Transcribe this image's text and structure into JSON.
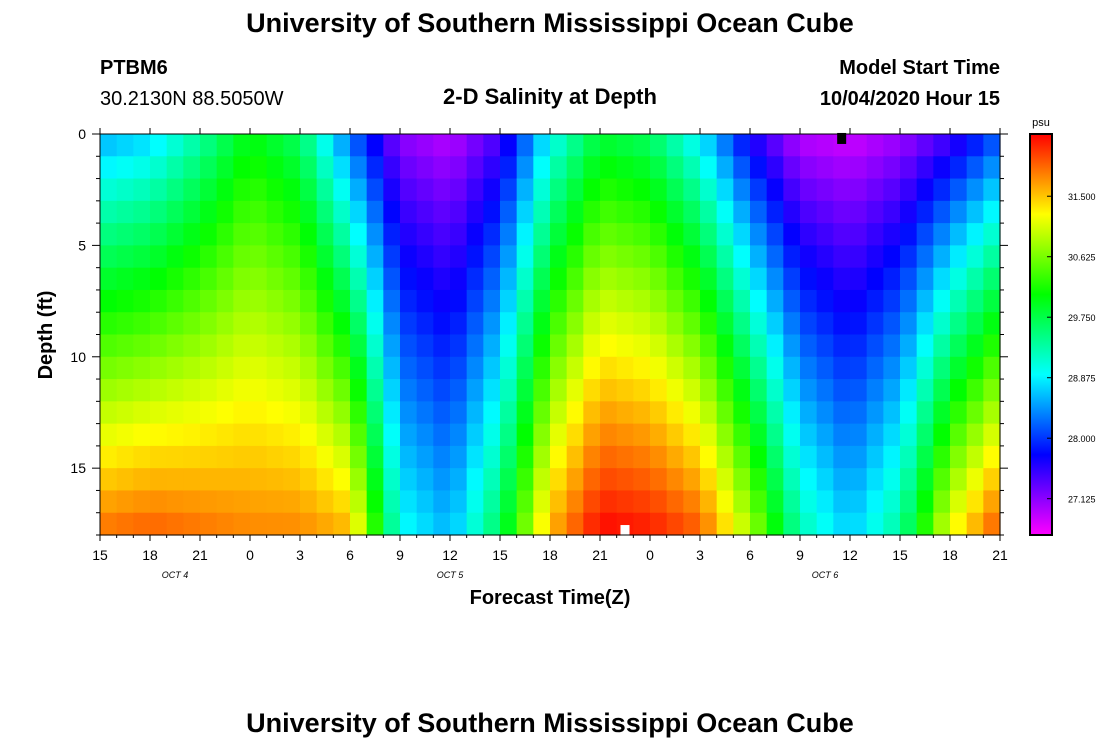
{
  "header": {
    "title_top": "University of Southern Mississippi Ocean Cube",
    "title_bottom": "University of Southern Mississippi Ocean Cube",
    "station_id": "PTBM6",
    "station_coords": "30.2130N 88.5050W",
    "plot_title": "2-D Salinity at Depth",
    "model_label": "Model Start Time",
    "model_time": "10/04/2020 Hour 15"
  },
  "chart_data": {
    "type": "heatmap",
    "title": "2-D Salinity at Depth",
    "xlabel": "Forecast Time(Z)",
    "ylabel": "Depth (ft)",
    "x_hours_range": [
      0,
      54
    ],
    "ylim": [
      0,
      18
    ],
    "x_ticks": [
      {
        "h": 0,
        "label": "15"
      },
      {
        "h": 3,
        "label": "18"
      },
      {
        "h": 6,
        "label": "21"
      },
      {
        "h": 9,
        "label": "0"
      },
      {
        "h": 12,
        "label": "3"
      },
      {
        "h": 15,
        "label": "6"
      },
      {
        "h": 18,
        "label": "9"
      },
      {
        "h": 21,
        "label": "12"
      },
      {
        "h": 24,
        "label": "15"
      },
      {
        "h": 27,
        "label": "18"
      },
      {
        "h": 30,
        "label": "21"
      },
      {
        "h": 33,
        "label": "0"
      },
      {
        "h": 36,
        "label": "3"
      },
      {
        "h": 39,
        "label": "6"
      },
      {
        "h": 42,
        "label": "9"
      },
      {
        "h": 45,
        "label": "12"
      },
      {
        "h": 48,
        "label": "15"
      },
      {
        "h": 51,
        "label": "18"
      },
      {
        "h": 54,
        "label": "21"
      }
    ],
    "y_ticks": [
      {
        "v": 0,
        "label": "0"
      },
      {
        "v": 5,
        "label": "5"
      },
      {
        "v": 10,
        "label": "10"
      },
      {
        "v": 15,
        "label": "15"
      }
    ],
    "date_labels": [
      {
        "h": 4.5,
        "label": "OCT 4"
      },
      {
        "h": 21,
        "label": "OCT 5"
      },
      {
        "h": 43.5,
        "label": "OCT 6"
      }
    ],
    "colorbar": {
      "unit": "psu",
      "min": 26.6,
      "max": 32.4,
      "tick_values": [
        27.125,
        28.0,
        28.875,
        29.75,
        30.625,
        31.5
      ],
      "tick_labels": [
        "27.125",
        "28.000",
        "28.875",
        "29.750",
        "30.625",
        "31.500"
      ]
    },
    "grid": false,
    "time_hours": [
      0,
      3,
      6,
      9,
      12,
      15,
      18,
      21,
      24,
      27,
      30,
      33,
      36,
      39,
      42,
      45,
      48,
      51,
      54
    ],
    "surface_salinity": [
      28.5,
      28.7,
      29.3,
      30.0,
      29.6,
      28.2,
      27.1,
      26.9,
      27.4,
      28.9,
      29.8,
      29.6,
      28.8,
      27.6,
      26.9,
      26.8,
      27.0,
      27.4,
      28.1
    ],
    "bottom_salinity": [
      31.9,
      32.0,
      31.9,
      31.8,
      31.8,
      31.6,
      29.0,
      28.6,
      29.7,
      31.6,
      32.4,
      32.3,
      32.0,
      30.9,
      29.3,
      28.7,
      29.4,
      31.2,
      32.1
    ],
    "markers": [
      {
        "h": 44.5,
        "depth": 0.2,
        "color": "#000000"
      },
      {
        "h": 31.5,
        "depth": 17.8,
        "color": "#ffffff"
      }
    ]
  }
}
